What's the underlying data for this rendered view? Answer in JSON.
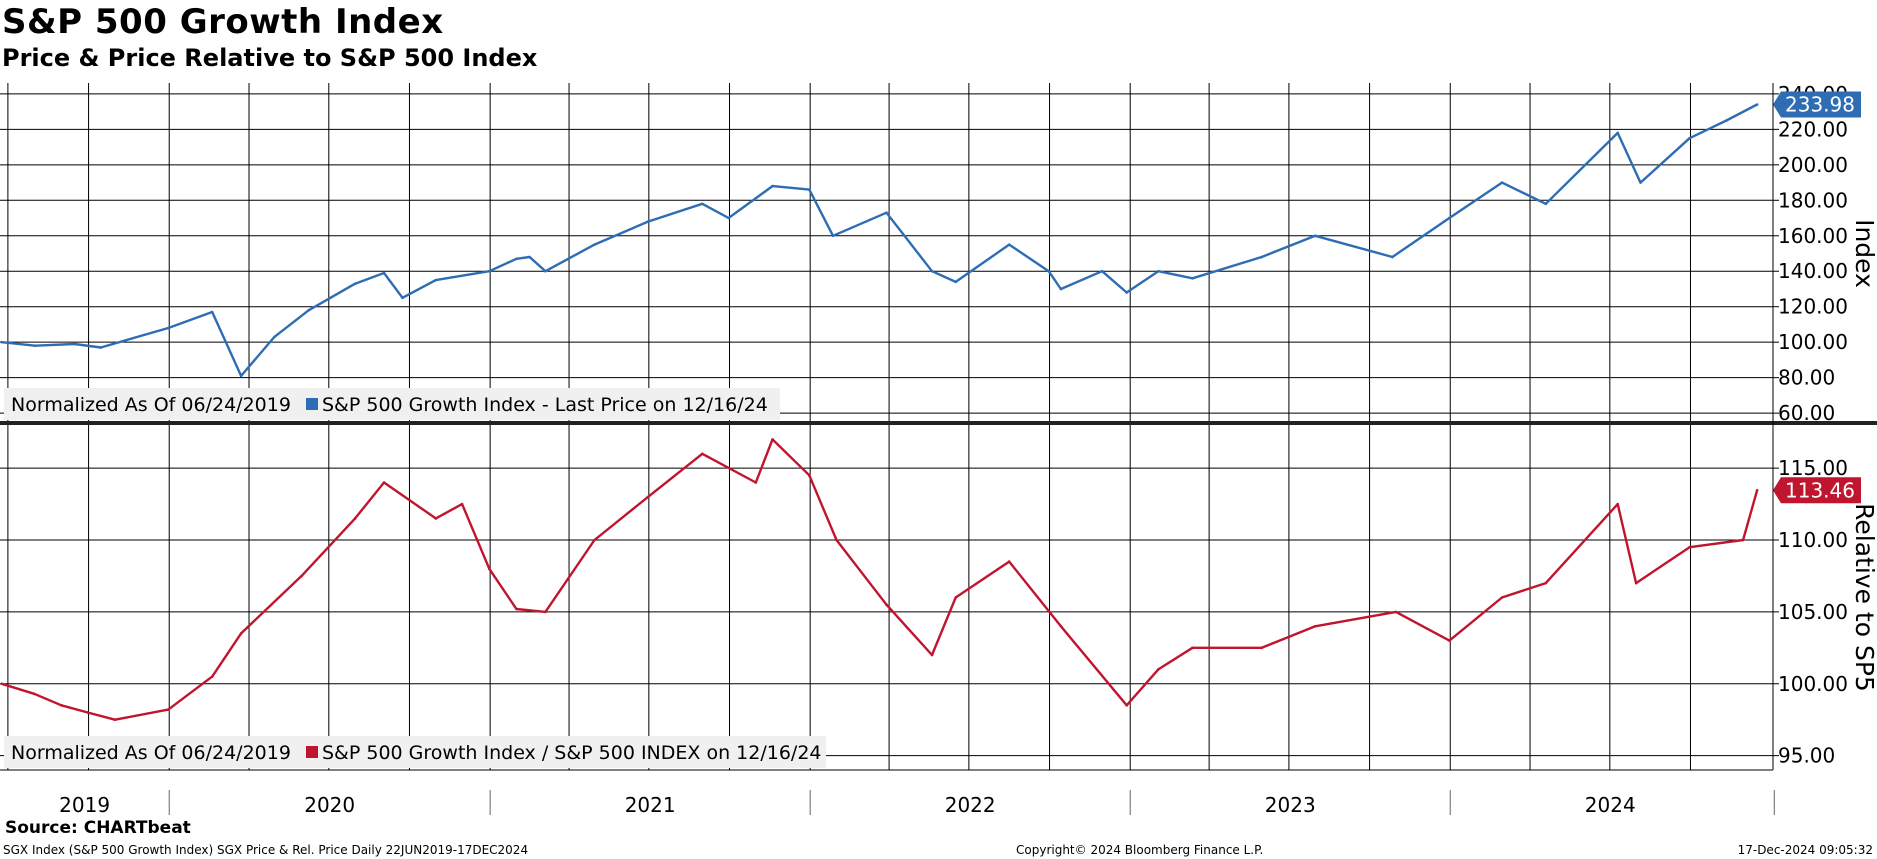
{
  "header": {
    "title": "S&P 500 Growth Index",
    "subtitle": "Price & Price Relative to S&P 500 Index"
  },
  "footer": {
    "source": "Source: CHARTbeat",
    "ticker_info": "SGX Index (S&P 500 Growth Index) SGX Price & Rel. Price  Daily 22JUN2019-17DEC2024",
    "copyright": "Copyright© 2024 Bloomberg Finance L.P.",
    "timestamp": "17-Dec-2024 09:05:32"
  },
  "colors": {
    "price": "#2E6DB4",
    "relative": "#C0152F",
    "grid": "#000000"
  },
  "chart_data": [
    {
      "type": "line",
      "title": "S&P 500 Growth Index",
      "ylabel": "Index",
      "ylim": [
        55,
        245
      ],
      "yticks": [
        "60.00",
        "80.00",
        "100.00",
        "120.00",
        "140.00",
        "160.00",
        "180.00",
        "200.00",
        "220.00",
        "240.00"
      ],
      "legend_prefix": "Normalized As Of 06/24/2019",
      "legend_position": "bottom-left",
      "last_value_label": "233.98",
      "series": [
        {
          "name": "S&P 500 Growth Index - Last Price on 12/16/24",
          "x": [
            "2019-06-24",
            "2019-08-01",
            "2019-09-15",
            "2019-10-15",
            "2019-12-31",
            "2020-02-19",
            "2020-03-23",
            "2020-04-30",
            "2020-06-08",
            "2020-07-31",
            "2020-09-02",
            "2020-09-23",
            "2020-10-31",
            "2020-12-31",
            "2021-01-31",
            "2021-02-15",
            "2021-03-05",
            "2021-04-30",
            "2021-06-30",
            "2021-08-31",
            "2021-09-30",
            "2021-11-19",
            "2021-12-31",
            "2022-01-27",
            "2022-03-29",
            "2022-05-20",
            "2022-06-16",
            "2022-08-16",
            "2022-09-30",
            "2022-10-14",
            "2022-11-30",
            "2022-12-28",
            "2023-02-02",
            "2023-03-13",
            "2023-05-31",
            "2023-07-31",
            "2023-10-27",
            "2023-12-31",
            "2024-02-29",
            "2024-04-19",
            "2024-07-10",
            "2024-08-05",
            "2024-09-30",
            "2024-11-11",
            "2024-12-16"
          ],
          "values": [
            100,
            98,
            99,
            97,
            108,
            117,
            81,
            103,
            118,
            133,
            139,
            125,
            135,
            140,
            147,
            148,
            140,
            155,
            168,
            178,
            170,
            188,
            186,
            160,
            173,
            140,
            134,
            155,
            140,
            130,
            140,
            128,
            140,
            136,
            148,
            160,
            148,
            170,
            190,
            178,
            218,
            190,
            215,
            225,
            233.98
          ]
        }
      ]
    },
    {
      "type": "line",
      "title": "Relative to S&P 500 INDEX",
      "ylabel": "Relative to SP5",
      "ylim": [
        94,
        118
      ],
      "yticks": [
        "95.00",
        "100.00",
        "105.00",
        "110.00",
        "115.00"
      ],
      "legend_prefix": "Normalized As Of 06/24/2019",
      "legend_position": "bottom-left",
      "last_value_label": "113.46",
      "series": [
        {
          "name": "S&P 500 Growth Index / S&P 500 INDEX on 12/16/24",
          "x": [
            "2019-06-24",
            "2019-07-31",
            "2019-08-31",
            "2019-09-30",
            "2019-10-31",
            "2019-12-31",
            "2020-02-19",
            "2020-03-23",
            "2020-05-31",
            "2020-07-31",
            "2020-09-02",
            "2020-10-31",
            "2020-11-30",
            "2020-12-31",
            "2021-01-31",
            "2021-03-05",
            "2021-04-30",
            "2021-06-30",
            "2021-08-31",
            "2021-10-31",
            "2021-11-19",
            "2021-12-31",
            "2022-01-31",
            "2022-03-29",
            "2022-05-20",
            "2022-06-16",
            "2022-08-16",
            "2022-10-14",
            "2022-12-28",
            "2023-02-02",
            "2023-03-13",
            "2023-05-31",
            "2023-07-31",
            "2023-10-31",
            "2023-12-31",
            "2024-02-29",
            "2024-04-19",
            "2024-07-10",
            "2024-07-31",
            "2024-09-30",
            "2024-11-30",
            "2024-12-16"
          ],
          "values": [
            100,
            99.3,
            98.5,
            98,
            97.5,
            98.2,
            100.5,
            103.5,
            107.5,
            111.5,
            114,
            111.5,
            112.5,
            108,
            105.2,
            105,
            110,
            113,
            116,
            114,
            117,
            114.5,
            110,
            105.5,
            102,
            106,
            108.5,
            104,
            98.5,
            101,
            102.5,
            102.5,
            104,
            105,
            103,
            106,
            107,
            112.5,
            107,
            109.5,
            110,
            113.46
          ]
        }
      ]
    }
  ],
  "x_axis": {
    "labels": [
      "2019",
      "2020",
      "2021",
      "2022",
      "2023",
      "2024"
    ]
  }
}
